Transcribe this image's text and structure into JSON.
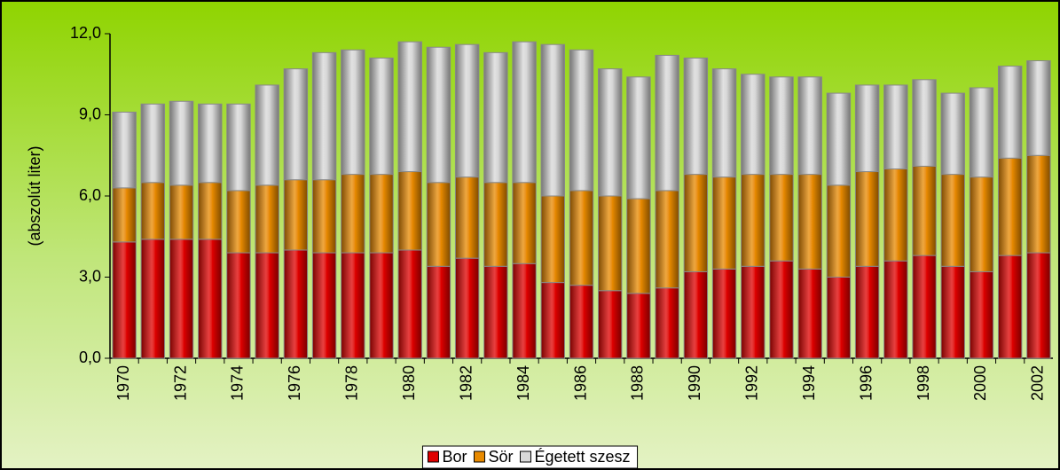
{
  "chart_data": {
    "type": "stacked_bar",
    "ylabel": "(abszolút liter)",
    "categories": [
      "1970",
      null,
      "1972",
      null,
      "1974",
      null,
      "1976",
      null,
      "1978",
      null,
      "1980",
      null,
      "1982",
      null,
      "1984",
      null,
      "1986",
      null,
      "1988",
      null,
      "1990",
      null,
      "1992",
      null,
      "1994",
      null,
      "1996",
      null,
      "1998",
      null,
      "2000",
      null,
      "2002"
    ],
    "series": [
      {
        "name": "Bor",
        "color": "#e00000",
        "values": [
          4.3,
          4.4,
          4.4,
          4.4,
          3.9,
          3.9,
          4.0,
          3.9,
          3.9,
          3.9,
          4.0,
          3.4,
          3.7,
          3.4,
          3.5,
          2.8,
          2.7,
          2.5,
          2.4,
          2.6,
          3.2,
          3.3,
          3.4,
          3.6,
          3.3,
          3.0,
          3.4,
          3.6,
          3.8,
          3.4,
          3.2,
          3.8,
          3.9
        ]
      },
      {
        "name": "Sör",
        "color": "#e88a00",
        "values": [
          2.0,
          2.1,
          2.0,
          2.1,
          2.3,
          2.5,
          2.6,
          2.7,
          2.9,
          2.9,
          2.9,
          3.1,
          3.0,
          3.1,
          3.0,
          3.2,
          3.5,
          3.5,
          3.5,
          3.6,
          3.6,
          3.4,
          3.4,
          3.2,
          3.5,
          3.4,
          3.5,
          3.4,
          3.3,
          3.4,
          3.5,
          3.6,
          3.6
        ]
      },
      {
        "name": "Égetett szesz",
        "color": "#d8d8d8",
        "values": [
          2.8,
          2.9,
          3.1,
          2.9,
          3.2,
          3.7,
          4.1,
          4.7,
          4.6,
          4.3,
          4.8,
          5.0,
          4.9,
          4.8,
          5.2,
          5.6,
          5.2,
          4.7,
          4.5,
          5.0,
          4.3,
          4.0,
          3.7,
          3.6,
          3.6,
          3.4,
          3.2,
          3.1,
          3.2,
          3.0,
          3.3,
          3.4,
          3.5
        ]
      }
    ],
    "ylim": [
      0,
      12
    ],
    "yticks": [
      {
        "value": 0,
        "label": "0,0"
      },
      {
        "value": 3,
        "label": "3,0"
      },
      {
        "value": 6,
        "label": "6,0"
      },
      {
        "value": 9,
        "label": "9,0"
      },
      {
        "value": 12,
        "label": "12,0"
      }
    ],
    "legend": "bottom"
  }
}
